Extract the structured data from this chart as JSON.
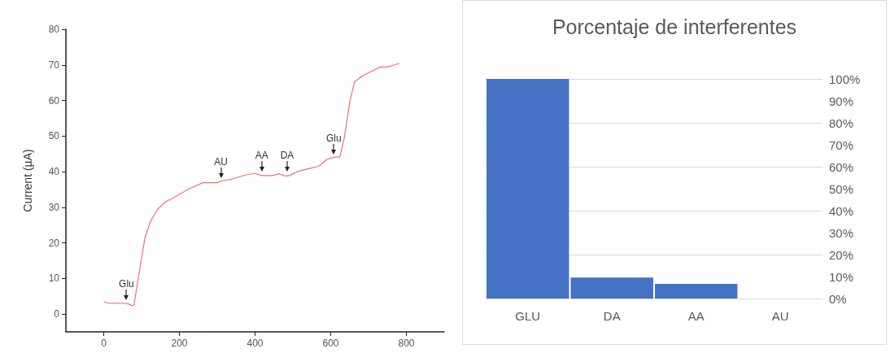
{
  "chart_data": [
    {
      "type": "line",
      "ylabel": "Current (µA)",
      "xlim": [
        -100,
        900
      ],
      "xticks": [
        0,
        200,
        400,
        600,
        800
      ],
      "ylim": [
        -5,
        80
      ],
      "yticks": [
        0,
        10,
        20,
        30,
        40,
        50,
        60,
        70,
        80
      ],
      "grid": false,
      "marker": "none",
      "line_style": "solid",
      "x": [
        0,
        10,
        56,
        67,
        75,
        80,
        94,
        109,
        124,
        143,
        163,
        185,
        224,
        262,
        300,
        315,
        338,
        376,
        399,
        418,
        445,
        464,
        479,
        491,
        514,
        544,
        568,
        591,
        609,
        624,
        636,
        651,
        663,
        682,
        704,
        731,
        750,
        781
      ],
      "series": [
        {
          "color": "#f07070",
          "values": [
            3.5,
            3.1,
            3.0,
            2.8,
            2.3,
            2.6,
            11.8,
            21.4,
            26.2,
            29.5,
            31.5,
            32.7,
            35.1,
            36.9,
            36.9,
            37.5,
            37.9,
            39.1,
            39.5,
            38.9,
            38.9,
            39.4,
            38.8,
            38.9,
            40.1,
            40.9,
            41.5,
            43.5,
            44.1,
            44.1,
            49.5,
            60,
            65.2,
            66.8,
            68.0,
            69.4,
            69.4,
            70.4
          ]
        }
      ],
      "annotations": [
        {
          "text": "Glu",
          "x": 60,
          "y": 3
        },
        {
          "text": "AU",
          "x": 310,
          "y": 37.3
        },
        {
          "text": "AA",
          "x": 418,
          "y": 39.2
        },
        {
          "text": "DA",
          "x": 485,
          "y": 39
        },
        {
          "text": "Glu",
          "x": 608,
          "y": 44
        }
      ]
    },
    {
      "type": "bar",
      "title": "Porcentaje de interferentes",
      "categories": [
        "GLU",
        "DA",
        "AA",
        "AU"
      ],
      "values": [
        100,
        9.5,
        6.7,
        0
      ],
      "color": "#4472c4",
      "ylim": [
        0,
        100
      ],
      "yticks": [
        {
          "value": 0,
          "label": "0%"
        },
        {
          "value": 10,
          "label": "10%"
        },
        {
          "value": 20,
          "label": "20%"
        },
        {
          "value": 30,
          "label": "30%"
        },
        {
          "value": 40,
          "label": "40%"
        },
        {
          "value": 50,
          "label": "50%"
        },
        {
          "value": 60,
          "label": "60%"
        },
        {
          "value": 70,
          "label": "70%"
        },
        {
          "value": 80,
          "label": "80%"
        },
        {
          "value": 90,
          "label": "90%"
        },
        {
          "value": 100,
          "label": "100%"
        }
      ],
      "grid": "y"
    }
  ]
}
